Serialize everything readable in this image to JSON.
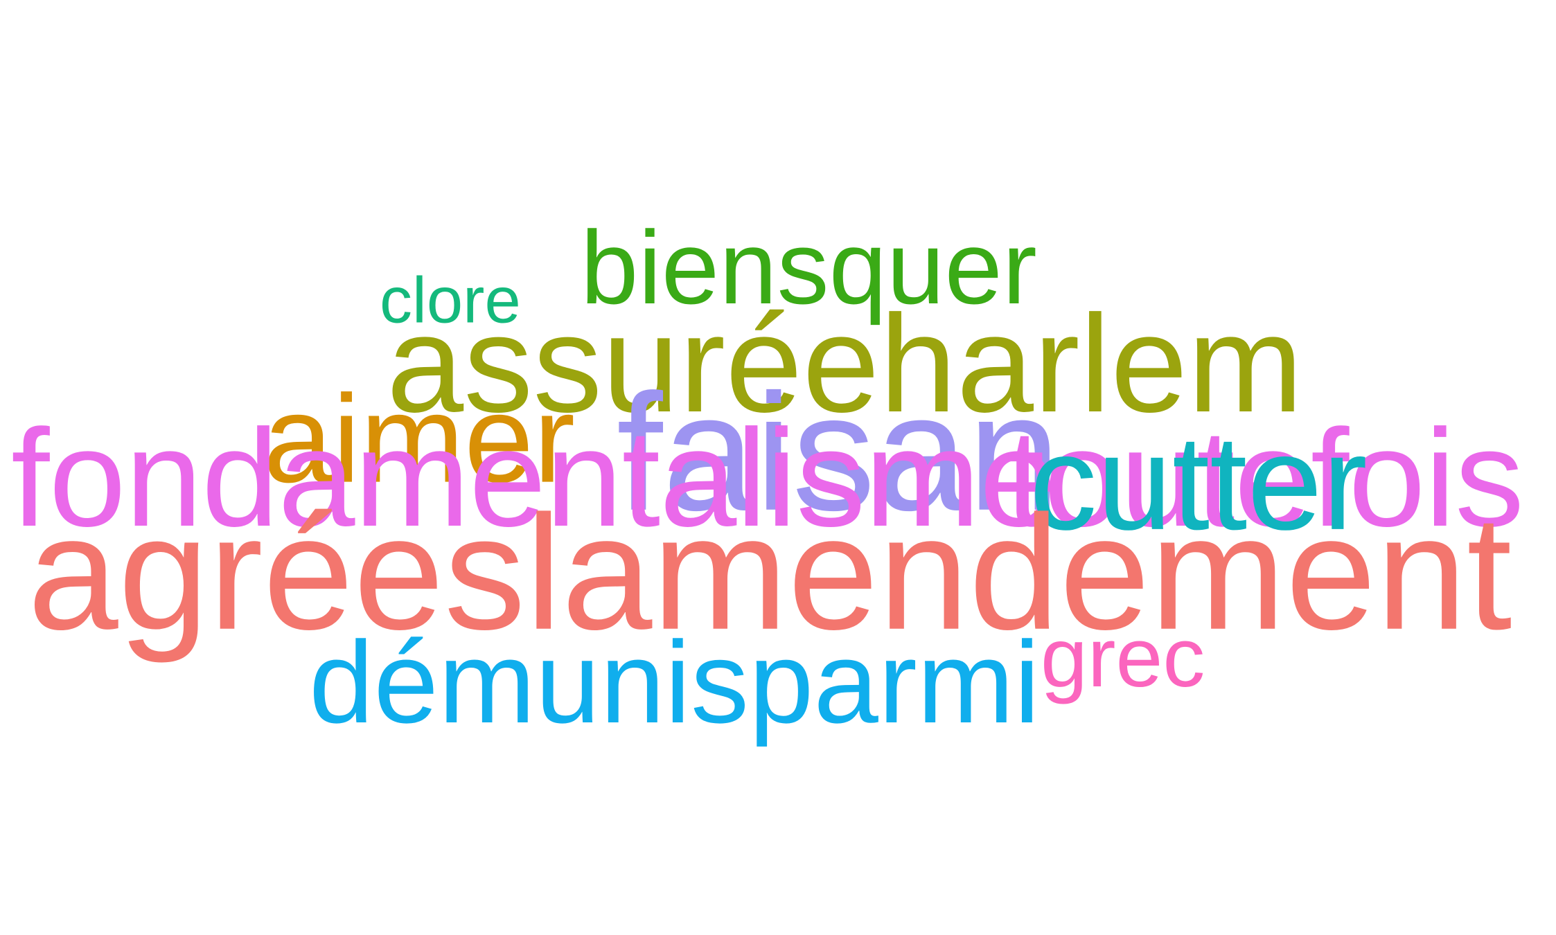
{
  "words": [
    {
      "text": "biensquer",
      "color": "#3aaa16"
    },
    {
      "text": "clore",
      "color": "#14b97c"
    },
    {
      "text": "assuréeharlem",
      "color": "#9ba40e"
    },
    {
      "text": "aimer",
      "color": "#d89006"
    },
    {
      "text": "fondamentalisme",
      "color": "#ea69ea"
    },
    {
      "text": "toutefois",
      "color": "#ea69ea"
    },
    {
      "text": "faisan",
      "color": "#9d94f1"
    },
    {
      "text": "cutter",
      "color": "#10b4bf"
    },
    {
      "text": "agréeslamendement",
      "color": "#f3766e"
    },
    {
      "text": "démunisparmi",
      "color": "#10aeed"
    },
    {
      "text": "grec",
      "color": "#fb65be"
    }
  ]
}
